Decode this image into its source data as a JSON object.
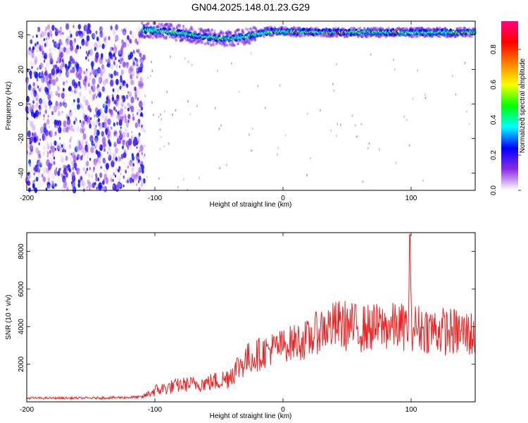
{
  "chart_data": [
    {
      "type": "heatmap",
      "title": "GN04.2025.148.01.23.G29",
      "xlabel": "Height of straight line (km)",
      "ylabel": "Frequency (Hz)",
      "xlim": [
        -200,
        150
      ],
      "ylim": [
        -50,
        48
      ],
      "xticks": [
        -200,
        -100,
        0,
        100
      ],
      "yticks": [
        -40,
        -20,
        0,
        20,
        40
      ],
      "colorbar": {
        "label": "Normalized spectral amplitude",
        "range": [
          0,
          0.96
        ],
        "ticks": [
          0.0,
          0.2,
          0.4,
          0.6,
          0.8
        ],
        "tick_labels": [
          "0.0",
          "0.2",
          "0.4",
          "0.6",
          "0.8"
        ],
        "colors": [
          "#ffffff",
          "#8a2be2",
          "#0000ff",
          "#00ffff",
          "#00ff00",
          "#ffff00",
          "#ff8000",
          "#ff0000",
          "#ff0080"
        ]
      },
      "noise_region_x": [
        -200,
        -108
      ],
      "signal_ridge": {
        "x": [
          -110,
          -100,
          -90,
          -80,
          -70,
          -60,
          -50,
          -40,
          -30,
          -20,
          -10,
          0,
          25,
          50,
          75,
          100,
          150
        ],
        "frequency": [
          43,
          42.5,
          42,
          41,
          40,
          39,
          38,
          38,
          39,
          40.5,
          42,
          42,
          41.5,
          41.5,
          41.5,
          41.5,
          41.5
        ]
      }
    },
    {
      "type": "line",
      "title": "",
      "xlabel": "Height of straight line (km)",
      "ylabel": "SNR (10 * v/v)",
      "xlim": [
        -200,
        150
      ],
      "ylim": [
        0,
        9000
      ],
      "xticks": [
        -200,
        -100,
        0,
        100
      ],
      "yticks": [
        2000,
        4000,
        6000,
        8000
      ],
      "color": "#ee2222",
      "series": [
        {
          "name": "",
          "x": [
            -200,
            -150,
            -110,
            -100,
            -80,
            -60,
            -45,
            -30,
            -20,
            -10,
            0,
            10,
            20,
            30,
            45,
            60,
            80,
            98,
            99,
            100,
            120,
            150
          ],
          "mean": [
            200,
            200,
            250,
            600,
            900,
            1000,
            1200,
            2200,
            2500,
            2800,
            3000,
            3200,
            3300,
            3900,
            4100,
            3900,
            4000,
            4000,
            8900,
            4000,
            3800,
            3600
          ],
          "spread": [
            60,
            60,
            80,
            350,
            400,
            450,
            600,
            900,
            900,
            900,
            900,
            1000,
            1100,
            1200,
            1400,
            1300,
            1300,
            1300,
            0,
            1300,
            1300,
            1300
          ]
        }
      ]
    }
  ]
}
